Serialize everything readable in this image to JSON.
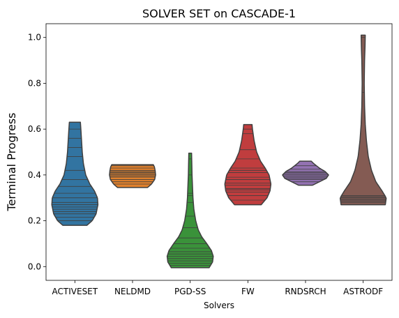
{
  "chart_data": {
    "type": "violin",
    "title": "SOLVER SET on CASCADE-1",
    "xlabel": "Solvers",
    "ylabel": "Terminal Progress",
    "ylim": [
      -0.06,
      1.06
    ],
    "yticks": [
      0.0,
      0.2,
      0.4,
      0.6,
      0.8,
      1.0
    ],
    "ytick_labels": [
      "0.0",
      "0.2",
      "0.4",
      "0.6",
      "0.8",
      "1.0"
    ],
    "grid": false,
    "legend": "none",
    "inner": "stick",
    "cut": 0,
    "categories": [
      "ACTIVESET",
      "NELDMD",
      "PGD-SS",
      "FW",
      "RNDSRCH",
      "ASTRODF"
    ],
    "series": [
      {
        "category": "ACTIVESET",
        "color": "#3274a1",
        "values": [
          0.18,
          0.2,
          0.215,
          0.23,
          0.24,
          0.25,
          0.26,
          0.27,
          0.28,
          0.3,
          0.32,
          0.35,
          0.38,
          0.42,
          0.48,
          0.52,
          0.56,
          0.6,
          0.63
        ],
        "profile": [
          [
            0.18,
            0.52
          ],
          [
            0.2,
            0.75
          ],
          [
            0.23,
            0.92
          ],
          [
            0.27,
            1.0
          ],
          [
            0.3,
            0.98
          ],
          [
            0.33,
            0.85
          ],
          [
            0.36,
            0.65
          ],
          [
            0.4,
            0.47
          ],
          [
            0.45,
            0.37
          ],
          [
            0.5,
            0.32
          ],
          [
            0.55,
            0.29
          ],
          [
            0.6,
            0.26
          ],
          [
            0.63,
            0.24
          ]
        ]
      },
      {
        "category": "NELDMD",
        "color": "#e1812c",
        "values": [
          0.345,
          0.36,
          0.37,
          0.38,
          0.39,
          0.395,
          0.4,
          0.405,
          0.41,
          0.415,
          0.42,
          0.43,
          0.44,
          0.445
        ],
        "profile": [
          [
            0.345,
            0.65
          ],
          [
            0.36,
            0.82
          ],
          [
            0.38,
            0.96
          ],
          [
            0.4,
            1.0
          ],
          [
            0.42,
            0.98
          ],
          [
            0.435,
            0.95
          ],
          [
            0.445,
            0.9
          ]
        ]
      },
      {
        "category": "PGD-SS",
        "color": "#3a923a",
        "values": [
          -0.005,
          0.005,
          0.015,
          0.025,
          0.035,
          0.045,
          0.055,
          0.065,
          0.08,
          0.1,
          0.125,
          0.17,
          0.22,
          0.28,
          0.31,
          0.32,
          0.4,
          0.47
        ],
        "profile": [
          [
            -0.005,
            0.82
          ],
          [
            0.02,
            0.97
          ],
          [
            0.045,
            1.0
          ],
          [
            0.07,
            0.92
          ],
          [
            0.1,
            0.72
          ],
          [
            0.13,
            0.5
          ],
          [
            0.16,
            0.35
          ],
          [
            0.2,
            0.24
          ],
          [
            0.25,
            0.16
          ],
          [
            0.3,
            0.12
          ],
          [
            0.35,
            0.1
          ],
          [
            0.4,
            0.08
          ],
          [
            0.45,
            0.07
          ],
          [
            0.495,
            0.06
          ]
        ]
      },
      {
        "category": "FW",
        "color": "#c03d3e",
        "values": [
          0.27,
          0.29,
          0.31,
          0.325,
          0.335,
          0.34,
          0.355,
          0.365,
          0.38,
          0.39,
          0.41,
          0.42,
          0.43,
          0.47,
          0.51,
          0.58,
          0.6
        ],
        "profile": [
          [
            0.27,
            0.58
          ],
          [
            0.3,
            0.83
          ],
          [
            0.33,
            0.96
          ],
          [
            0.36,
            1.0
          ],
          [
            0.4,
            0.92
          ],
          [
            0.43,
            0.75
          ],
          [
            0.46,
            0.55
          ],
          [
            0.5,
            0.38
          ],
          [
            0.55,
            0.27
          ],
          [
            0.6,
            0.2
          ],
          [
            0.62,
            0.18
          ]
        ]
      },
      {
        "category": "RNDSRCH",
        "color": "#9372b2",
        "values": [
          0.355,
          0.37,
          0.38,
          0.385,
          0.39,
          0.395,
          0.4,
          0.405,
          0.41,
          0.415,
          0.425,
          0.44,
          0.46
        ],
        "profile": [
          [
            0.355,
            0.3
          ],
          [
            0.37,
            0.6
          ],
          [
            0.385,
            0.9
          ],
          [
            0.4,
            1.0
          ],
          [
            0.415,
            0.85
          ],
          [
            0.43,
            0.6
          ],
          [
            0.45,
            0.35
          ],
          [
            0.46,
            0.25
          ]
        ]
      },
      {
        "category": "ASTRODF",
        "color": "#845b53",
        "values": [
          0.27,
          0.28,
          0.285,
          0.29,
          0.295,
          0.3,
          0.305,
          0.31,
          0.76,
          1.0
        ],
        "profile": [
          [
            0.27,
            0.96
          ],
          [
            0.3,
            1.0
          ],
          [
            0.33,
            0.82
          ],
          [
            0.37,
            0.55
          ],
          [
            0.42,
            0.36
          ],
          [
            0.48,
            0.22
          ],
          [
            0.55,
            0.14
          ],
          [
            0.62,
            0.09
          ],
          [
            0.7,
            0.06
          ],
          [
            0.8,
            0.045
          ],
          [
            0.9,
            0.06
          ],
          [
            0.96,
            0.08
          ],
          [
            1.01,
            0.09
          ]
        ]
      }
    ]
  }
}
